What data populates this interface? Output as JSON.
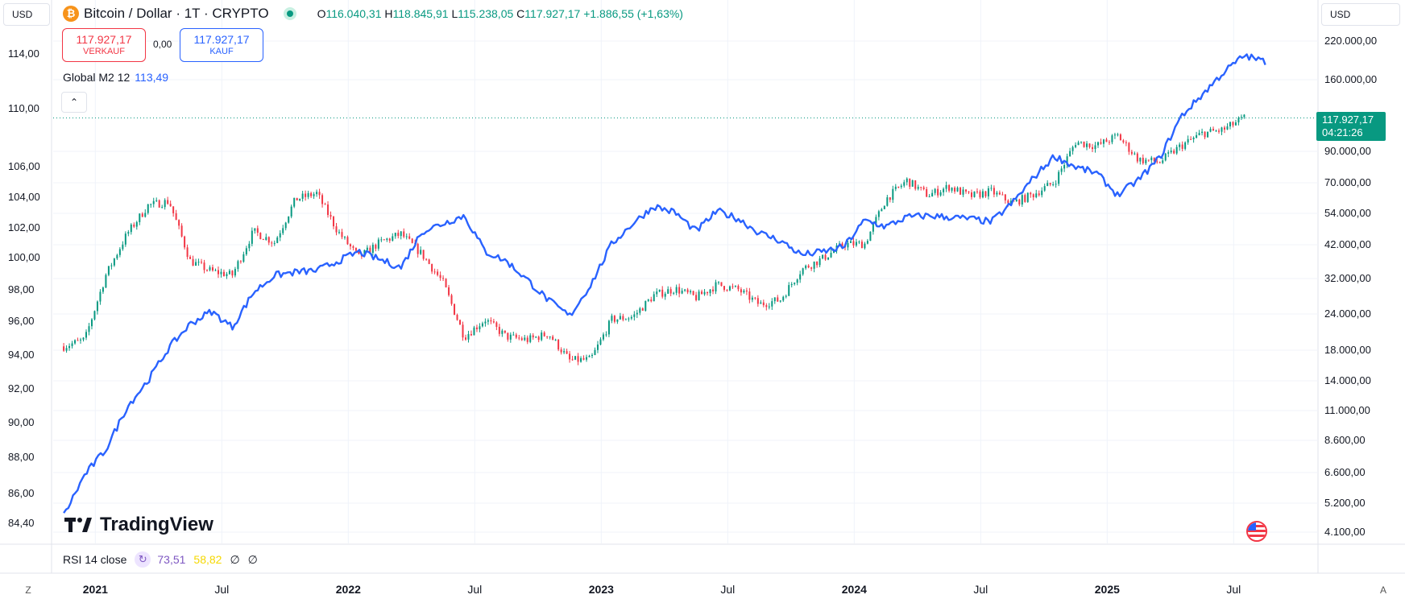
{
  "toolbar": {
    "currency_left": "USD",
    "currency_right": "USD"
  },
  "symbol": {
    "coin_glyph": "₿",
    "title": "Bitcoin / Dollar · 1T · CRYPTO",
    "open_key": "O",
    "open": "116.040,31",
    "high_key": "H",
    "high": "118.845,91",
    "low_key": "L",
    "low": "115.238,05",
    "close_key": "C",
    "close": "117.927,17",
    "change": "+1.886,55 (+1,63%)"
  },
  "trade": {
    "sell_price": "117.927,17",
    "sell_label": "VERKAUF",
    "spread": "0,00",
    "buy_price": "117.927,17",
    "buy_label": "KAUF"
  },
  "indicator_m2": {
    "name": "Global M2 12",
    "value": "113,49"
  },
  "collapse_glyph": "⌃",
  "left_axis": [
    "114,00",
    "110,00",
    "106,00",
    "104,00",
    "102,00",
    "100,00",
    "98,00",
    "96,00",
    "94,00",
    "92,00",
    "90,00",
    "88,00",
    "86,00",
    "84,40"
  ],
  "right_axis": [
    "220.000,00",
    "160.000,00",
    "90.000,00",
    "70.000,00",
    "54.000,00",
    "42.000,00",
    "32.000,00",
    "24.000,00",
    "18.000,00",
    "14.000,00",
    "11.000,00",
    "8.600,00",
    "6.600,00",
    "5.200,00",
    "4.100,00"
  ],
  "price_tag": {
    "price": "117.927,17",
    "countdown": "04:21:26"
  },
  "x_axis": [
    {
      "label": "2021",
      "bold": true
    },
    {
      "label": "Jul",
      "bold": false
    },
    {
      "label": "2022",
      "bold": true
    },
    {
      "label": "Jul",
      "bold": false
    },
    {
      "label": "2023",
      "bold": true
    },
    {
      "label": "Jul",
      "bold": false
    },
    {
      "label": "2024",
      "bold": true
    },
    {
      "label": "Jul",
      "bold": false
    },
    {
      "label": "2025",
      "bold": true
    },
    {
      "label": "Jul",
      "bold": false
    }
  ],
  "logo_text": "TradingView",
  "rsi": {
    "name": "RSI 14 close",
    "icon_glyph": "↻",
    "value1": "73,51",
    "value2": "58,82",
    "value3": "∅",
    "value4": "∅"
  },
  "corner": {
    "left": "Z",
    "right": "A"
  },
  "chart_data": {
    "type": "line",
    "x_labels": [
      "2021",
      "Jul",
      "2022",
      "Jul",
      "2023",
      "Jul",
      "2024",
      "Jul",
      "2025",
      "Jul"
    ],
    "series": [
      {
        "name": "Bitcoin / Dollar",
        "axis": "right",
        "style": "candles",
        "color_up": "#089981",
        "color_down": "#f23645",
        "points": [
          [
            "2020-11",
            18500
          ],
          [
            "2020-12",
            19500
          ],
          [
            "2021-01",
            33000
          ],
          [
            "2021-02",
            46000
          ],
          [
            "2021-03",
            58000
          ],
          [
            "2021-04",
            60000
          ],
          [
            "2021-05",
            37000
          ],
          [
            "2021-06",
            34000
          ],
          [
            "2021-07",
            33000
          ],
          [
            "2021-08",
            47000
          ],
          [
            "2021-09",
            43000
          ],
          [
            "2021-10",
            61000
          ],
          [
            "2021-11",
            64000
          ],
          [
            "2021-12",
            47000
          ],
          [
            "2022-01",
            38000
          ],
          [
            "2022-02",
            43000
          ],
          [
            "2022-03",
            46000
          ],
          [
            "2022-04",
            39000
          ],
          [
            "2022-05",
            31000
          ],
          [
            "2022-06",
            20000
          ],
          [
            "2022-07",
            23000
          ],
          [
            "2022-08",
            20000
          ],
          [
            "2022-09",
            19500
          ],
          [
            "2022-10",
            20500
          ],
          [
            "2022-11",
            16500
          ],
          [
            "2022-12",
            16600
          ],
          [
            "2023-01",
            23000
          ],
          [
            "2023-02",
            23500
          ],
          [
            "2023-03",
            28000
          ],
          [
            "2023-04",
            29500
          ],
          [
            "2023-05",
            27500
          ],
          [
            "2023-06",
            30500
          ],
          [
            "2023-07",
            29300
          ],
          [
            "2023-08",
            26000
          ],
          [
            "2023-09",
            27000
          ],
          [
            "2023-10",
            34500
          ],
          [
            "2023-11",
            37700
          ],
          [
            "2023-12",
            42300
          ],
          [
            "2024-01",
            42500
          ],
          [
            "2024-02",
            61000
          ],
          [
            "2024-03",
            71000
          ],
          [
            "2024-04",
            63000
          ],
          [
            "2024-05",
            67500
          ],
          [
            "2024-06",
            62500
          ],
          [
            "2024-07",
            65000
          ],
          [
            "2024-08",
            59000
          ],
          [
            "2024-09",
            63500
          ],
          [
            "2024-10",
            70000
          ],
          [
            "2024-11",
            97000
          ],
          [
            "2024-12",
            94000
          ],
          [
            "2025-01",
            102000
          ],
          [
            "2025-02",
            84000
          ],
          [
            "2025-03",
            82500
          ],
          [
            "2025-04",
            94000
          ],
          [
            "2025-05",
            104000
          ],
          [
            "2025-06",
            107000
          ],
          [
            "2025-07",
            117927
          ]
        ]
      },
      {
        "name": "Global M2 12",
        "axis": "left",
        "style": "line",
        "color": "#2962ff",
        "points": [
          [
            "2020-11",
            84.6
          ],
          [
            "2020-12",
            87.2
          ],
          [
            "2021-01",
            88.8
          ],
          [
            "2021-02",
            91.5
          ],
          [
            "2021-03",
            93.2
          ],
          [
            "2021-04",
            95.3
          ],
          [
            "2021-05",
            96.8
          ],
          [
            "2021-06",
            97.6
          ],
          [
            "2021-07",
            96.6
          ],
          [
            "2021-08",
            98.8
          ],
          [
            "2021-09",
            99.9
          ],
          [
            "2021-10",
            100.1
          ],
          [
            "2021-11",
            100.2
          ],
          [
            "2021-12",
            100.8
          ],
          [
            "2022-01",
            101.4
          ],
          [
            "2022-02",
            100.9
          ],
          [
            "2022-03",
            100.4
          ],
          [
            "2022-04",
            102.7
          ],
          [
            "2022-05",
            103.2
          ],
          [
            "2022-06",
            103.7
          ],
          [
            "2022-07",
            101.4
          ],
          [
            "2022-08",
            100.8
          ],
          [
            "2022-09",
            99.6
          ],
          [
            "2022-10",
            98.3
          ],
          [
            "2022-11",
            97.3
          ],
          [
            "2022-12",
            99.3
          ],
          [
            "2023-01",
            101.9
          ],
          [
            "2023-02",
            103.2
          ],
          [
            "2023-03",
            104.3
          ],
          [
            "2023-04",
            103.9
          ],
          [
            "2023-05",
            102.7
          ],
          [
            "2023-06",
            104.0
          ],
          [
            "2023-07",
            103.5
          ],
          [
            "2023-08",
            102.6
          ],
          [
            "2023-09",
            102.1
          ],
          [
            "2023-10",
            101.2
          ],
          [
            "2023-11",
            101.4
          ],
          [
            "2023-12",
            101.7
          ],
          [
            "2024-01",
            103.4
          ],
          [
            "2024-02",
            103.0
          ],
          [
            "2024-03",
            103.6
          ],
          [
            "2024-04",
            103.7
          ],
          [
            "2024-05",
            103.6
          ],
          [
            "2024-06",
            103.5
          ],
          [
            "2024-07",
            103.3
          ],
          [
            "2024-08",
            104.5
          ],
          [
            "2024-09",
            106.1
          ],
          [
            "2024-10",
            107.5
          ],
          [
            "2024-11",
            106.8
          ],
          [
            "2024-12",
            106.4
          ],
          [
            "2025-01",
            105.0
          ],
          [
            "2025-02",
            106.0
          ],
          [
            "2025-03",
            107.4
          ],
          [
            "2025-04",
            110.0
          ],
          [
            "2025-05",
            111.4
          ],
          [
            "2025-06",
            112.8
          ],
          [
            "2025-07",
            113.9
          ],
          [
            "2025-08",
            113.5
          ]
        ]
      }
    ],
    "last_price": 117927.17
  }
}
